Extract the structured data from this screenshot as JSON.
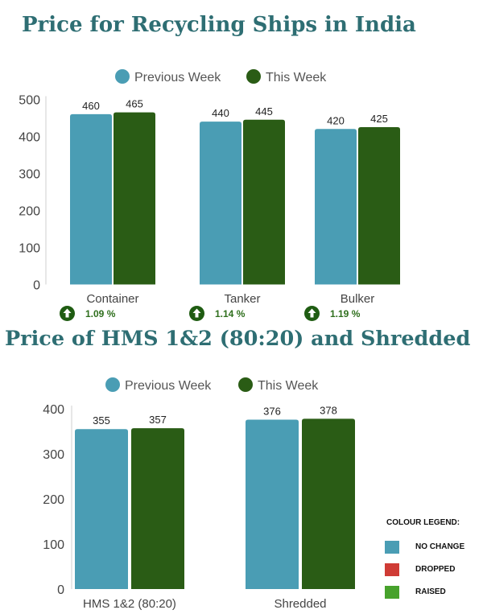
{
  "chart1": {
    "title": "Price for Recycling Ships in India",
    "changes": [
      "1.09 %",
      "1.14 %",
      "1.19 %"
    ],
    "change_icon": "up-arrow-icon"
  },
  "chart2": {
    "title": "Price of HMS 1&2 (80:20) and Shredded"
  },
  "colors": {
    "title": "#2e6e73",
    "previous_week": "#4a9db4",
    "this_week": "#2a5c15",
    "no_change": "#4a9db4",
    "dropped": "#cf3b35",
    "raised": "#47a22c"
  },
  "color_legend": {
    "title": "COLOUR LEGEND:",
    "items": [
      {
        "label": "NO CHANGE",
        "color": "#4a9db4"
      },
      {
        "label": "DROPPED",
        "color": "#cf3b35"
      },
      {
        "label": "RAISED",
        "color": "#47a22c"
      }
    ]
  },
  "chart_data": [
    {
      "type": "bar",
      "title": "Price for Recycling Ships in India",
      "categories": [
        "Container",
        "Tanker",
        "Bulker"
      ],
      "series": [
        {
          "name": "Previous Week",
          "values": [
            460,
            440,
            420
          ]
        },
        {
          "name": "This Week",
          "values": [
            465,
            445,
            425
          ]
        }
      ],
      "ylim": [
        0,
        500
      ],
      "yticks": [
        0,
        100,
        200,
        300,
        400,
        500
      ],
      "legend": "top-center",
      "grid": false
    },
    {
      "type": "bar",
      "title": "Price of HMS 1&2 (80:20) and Shredded",
      "categories": [
        "HMS 1&2 (80:20)",
        "Shredded"
      ],
      "series": [
        {
          "name": "Previous Week",
          "values": [
            355,
            376
          ]
        },
        {
          "name": "This Week",
          "values": [
            357,
            378
          ]
        }
      ],
      "ylim": [
        0,
        400
      ],
      "yticks": [
        0,
        100,
        200,
        300,
        400
      ],
      "legend": "top-center",
      "grid": false
    }
  ]
}
